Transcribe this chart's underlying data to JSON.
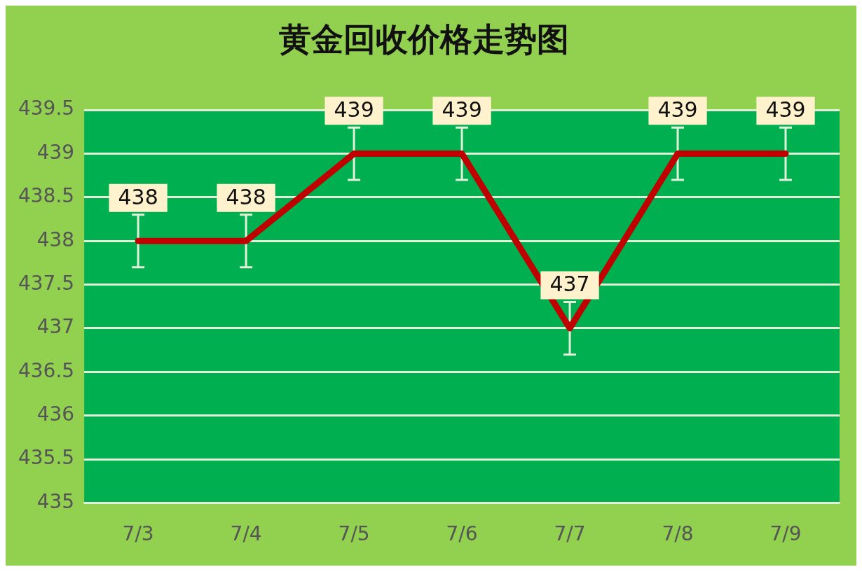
{
  "chart_data": {
    "type": "line",
    "title": "黄金回收价格走势图",
    "categories": [
      "7/3",
      "7/4",
      "7/5",
      "7/6",
      "7/7",
      "7/8",
      "7/9"
    ],
    "values": [
      438,
      438,
      439,
      439,
      437,
      439,
      439
    ],
    "color": "#c00000",
    "errors": [
      0.3,
      0.3,
      0.3,
      0.3,
      0.3,
      0.3,
      0.3
    ],
    "ylim": [
      435,
      439.5
    ],
    "yticks": [
      435,
      435.5,
      436,
      436.5,
      437,
      437.5,
      438,
      438.5,
      439,
      439.5
    ],
    "grid": "y",
    "data_labels": true,
    "marker": "none",
    "line_style": "solid",
    "legend": false
  }
}
